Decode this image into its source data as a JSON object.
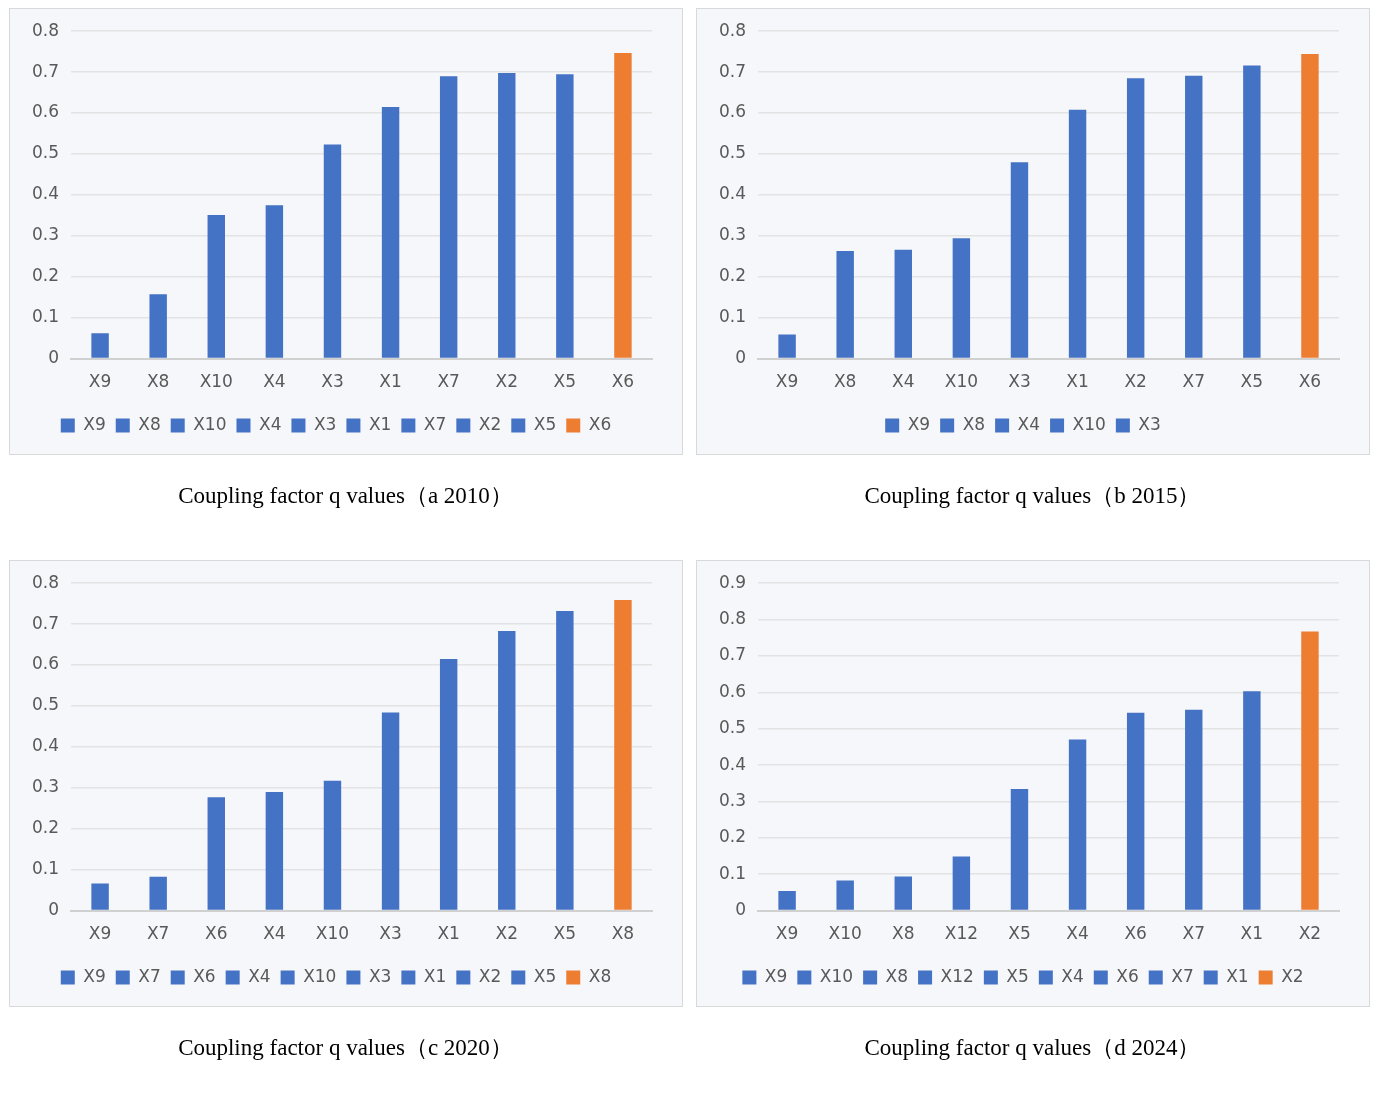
{
  "chart_data": [
    {
      "type": "bar",
      "title": "Coupling factor q values（a 2010）",
      "categories": [
        "X9",
        "X8",
        "X10",
        "X4",
        "X3",
        "X1",
        "X7",
        "X2",
        "X5",
        "X6"
      ],
      "stacked": true,
      "ylim": [
        0,
        0.8
      ],
      "yticks": [
        0,
        0.1,
        0.2,
        0.3,
        0.4,
        0.5,
        0.6,
        0.7,
        0.8
      ],
      "grid": "y",
      "legend": "bottom",
      "series": [
        {
          "name": "X9",
          "color": "#4472c4",
          "values": [
            0.062,
            null,
            null,
            null,
            null,
            null,
            null,
            null,
            null,
            null
          ]
        },
        {
          "name": "X8",
          "color": "#4472c4",
          "values": [
            null,
            0.157,
            null,
            null,
            null,
            null,
            null,
            null,
            null,
            null
          ]
        },
        {
          "name": "X10",
          "color": "#4472c4",
          "values": [
            null,
            null,
            0.351,
            null,
            null,
            null,
            null,
            null,
            null,
            null
          ]
        },
        {
          "name": "X4",
          "color": "#4472c4",
          "values": [
            null,
            null,
            null,
            0.375,
            null,
            null,
            null,
            null,
            null,
            null
          ]
        },
        {
          "name": "X3",
          "color": "#4472c4",
          "values": [
            null,
            null,
            null,
            null,
            0.523,
            null,
            null,
            null,
            null,
            null
          ]
        },
        {
          "name": "X1",
          "color": "#4472c4",
          "values": [
            null,
            null,
            null,
            null,
            null,
            0.615,
            null,
            null,
            null,
            null
          ]
        },
        {
          "name": "X7",
          "color": "#4472c4",
          "values": [
            null,
            null,
            null,
            null,
            null,
            null,
            0.69,
            null,
            null,
            null
          ]
        },
        {
          "name": "X2",
          "color": "#4472c4",
          "values": [
            null,
            null,
            null,
            null,
            null,
            null,
            null,
            0.698,
            null,
            null
          ]
        },
        {
          "name": "X5",
          "color": "#4472c4",
          "values": [
            null,
            null,
            null,
            null,
            null,
            null,
            null,
            null,
            0.695,
            null
          ]
        },
        {
          "name": "X6",
          "color": "#ed7d31",
          "values": [
            null,
            null,
            null,
            null,
            null,
            null,
            null,
            null,
            null,
            0.747
          ]
        }
      ]
    },
    {
      "type": "bar",
      "title": "Coupling factor q values（b 2015）",
      "categories": [
        "X9",
        "X8",
        "X4",
        "X10",
        "X3",
        "X1",
        "X2",
        "X7",
        "X5",
        "X6"
      ],
      "stacked": true,
      "ylim": [
        0,
        0.8
      ],
      "yticks": [
        0,
        0.1,
        0.2,
        0.3,
        0.4,
        0.5,
        0.6,
        0.7,
        0.8
      ],
      "grid": "y",
      "legend": "bottom",
      "series": [
        {
          "name": "X9",
          "color": "#4472c4",
          "values": [
            0.059,
            null,
            null,
            null,
            null,
            null,
            null,
            null,
            null,
            null
          ]
        },
        {
          "name": "X8",
          "color": "#4472c4",
          "values": [
            null,
            0.263,
            null,
            null,
            null,
            null,
            null,
            null,
            null,
            null
          ]
        },
        {
          "name": "X4",
          "color": "#4472c4",
          "values": [
            null,
            null,
            0.266,
            null,
            null,
            null,
            null,
            null,
            null,
            null
          ]
        },
        {
          "name": "X10",
          "color": "#4472c4",
          "values": [
            null,
            null,
            null,
            0.294,
            null,
            null,
            null,
            null,
            null,
            null
          ]
        },
        {
          "name": "X3",
          "color": "#4472c4",
          "values": [
            null,
            null,
            null,
            null,
            0.48,
            null,
            null,
            null,
            null,
            null
          ]
        },
        {
          "color": "#4472c4",
          "values": [
            null,
            null,
            null,
            null,
            null,
            0.608,
            null,
            null,
            null,
            null
          ]
        },
        {
          "color": "#4472c4",
          "values": [
            null,
            null,
            null,
            null,
            null,
            null,
            0.685,
            null,
            null,
            null
          ]
        },
        {
          "color": "#4472c4",
          "values": [
            null,
            null,
            null,
            null,
            null,
            null,
            null,
            0.691,
            null,
            null
          ]
        },
        {
          "color": "#4472c4",
          "values": [
            null,
            null,
            null,
            null,
            null,
            null,
            null,
            null,
            0.716,
            null
          ]
        },
        {
          "color": "#ed7d31",
          "values": [
            null,
            null,
            null,
            null,
            null,
            null,
            null,
            null,
            null,
            0.744
          ]
        }
      ]
    },
    {
      "type": "bar",
      "title": "Coupling factor q values（c 2020）",
      "categories": [
        "X9",
        "X7",
        "X6",
        "X4",
        "X10",
        "X3",
        "X1",
        "X2",
        "X5",
        "X8"
      ],
      "stacked": true,
      "ylim": [
        0,
        0.8
      ],
      "yticks": [
        0,
        0.1,
        0.2,
        0.3,
        0.4,
        0.5,
        0.6,
        0.7,
        0.8
      ],
      "grid": "y",
      "legend": "bottom",
      "series": [
        {
          "name": "X9",
          "color": "#4472c4",
          "values": [
            0.066,
            null,
            null,
            null,
            null,
            null,
            null,
            null,
            null,
            null
          ]
        },
        {
          "name": "X7",
          "color": "#4472c4",
          "values": [
            null,
            0.083,
            null,
            null,
            null,
            null,
            null,
            null,
            null,
            null
          ]
        },
        {
          "name": "X6",
          "color": "#4472c4",
          "values": [
            null,
            null,
            0.277,
            null,
            null,
            null,
            null,
            null,
            null,
            null
          ]
        },
        {
          "name": "X4",
          "color": "#4472c4",
          "values": [
            null,
            null,
            null,
            0.29,
            null,
            null,
            null,
            null,
            null,
            null
          ]
        },
        {
          "name": "X10",
          "color": "#4472c4",
          "values": [
            null,
            null,
            null,
            null,
            0.317,
            null,
            null,
            null,
            null,
            null
          ]
        },
        {
          "name": "X3",
          "color": "#4472c4",
          "values": [
            null,
            null,
            null,
            null,
            null,
            0.484,
            null,
            null,
            null,
            null
          ]
        },
        {
          "name": "X1",
          "color": "#4472c4",
          "values": [
            null,
            null,
            null,
            null,
            null,
            null,
            0.615,
            null,
            null,
            null
          ]
        },
        {
          "name": "X2",
          "color": "#4472c4",
          "values": [
            null,
            null,
            null,
            null,
            null,
            null,
            null,
            0.683,
            null,
            null
          ]
        },
        {
          "name": "X5",
          "color": "#4472c4",
          "values": [
            null,
            null,
            null,
            null,
            null,
            null,
            null,
            null,
            0.732,
            null
          ]
        },
        {
          "name": "X8",
          "color": "#ed7d31",
          "values": [
            null,
            null,
            null,
            null,
            null,
            null,
            null,
            null,
            null,
            0.759
          ]
        }
      ]
    },
    {
      "type": "bar",
      "title": "Coupling factor q values（d 2024）",
      "categories": [
        "X9",
        "X10",
        "X8",
        "X12",
        "X5",
        "X4",
        "X6",
        "X7",
        "X1",
        "X2"
      ],
      "stacked": true,
      "ylim": [
        0,
        0.9
      ],
      "yticks": [
        0,
        0.1,
        0.2,
        0.3,
        0.4,
        0.5,
        0.6,
        0.7,
        0.8,
        0.9
      ],
      "grid": "y",
      "legend": "bottom",
      "series": [
        {
          "name": "X9",
          "color": "#4472c4",
          "values": [
            0.054,
            null,
            null,
            null,
            null,
            null,
            null,
            null,
            null,
            null
          ]
        },
        {
          "name": "X10",
          "color": "#4472c4",
          "values": [
            null,
            0.083,
            null,
            null,
            null,
            null,
            null,
            null,
            null,
            null
          ]
        },
        {
          "name": "X8",
          "color": "#4472c4",
          "values": [
            null,
            null,
            0.094,
            null,
            null,
            null,
            null,
            null,
            null,
            null
          ]
        },
        {
          "name": "X12",
          "color": "#4472c4",
          "values": [
            null,
            null,
            null,
            0.149,
            null,
            null,
            null,
            null,
            null,
            null
          ]
        },
        {
          "name": "X5",
          "color": "#4472c4",
          "values": [
            null,
            null,
            null,
            null,
            0.334,
            null,
            null,
            null,
            null,
            null
          ]
        },
        {
          "name": "X4",
          "color": "#4472c4",
          "values": [
            null,
            null,
            null,
            null,
            null,
            0.47,
            null,
            null,
            null,
            null
          ]
        },
        {
          "name": "X6",
          "color": "#4472c4",
          "values": [
            null,
            null,
            null,
            null,
            null,
            null,
            0.544,
            null,
            null,
            null
          ]
        },
        {
          "name": "X7",
          "color": "#4472c4",
          "values": [
            null,
            null,
            null,
            null,
            null,
            null,
            null,
            0.552,
            null,
            null
          ]
        },
        {
          "name": "X1",
          "color": "#4472c4",
          "values": [
            null,
            null,
            null,
            null,
            null,
            null,
            null,
            null,
            0.603,
            null
          ]
        },
        {
          "name": "X2",
          "color": "#ed7d31",
          "values": [
            null,
            null,
            null,
            null,
            null,
            null,
            null,
            null,
            null,
            0.767
          ]
        }
      ]
    }
  ]
}
